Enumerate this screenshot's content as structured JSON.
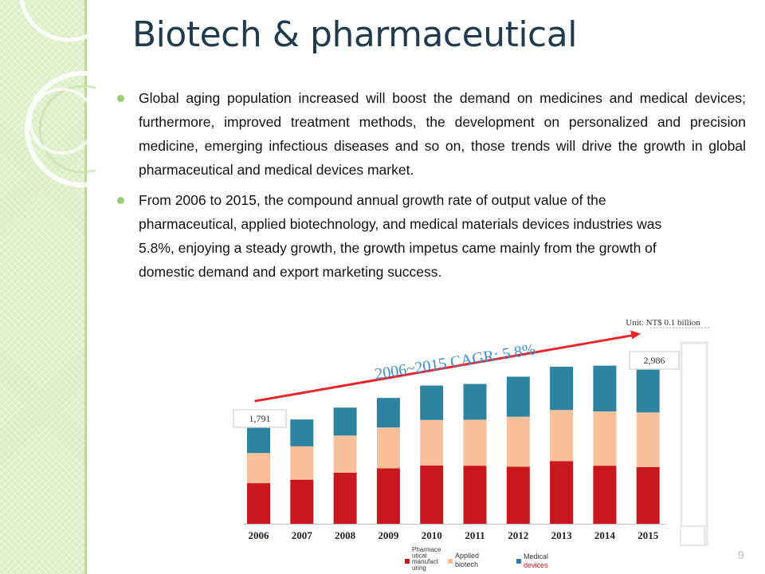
{
  "slide": {
    "title": "Biotech & pharmaceutical",
    "page_number": "9",
    "bullets": [
      "Global aging population increased will boost the demand on medicines and medical devices; furthermore, improved treatment methods, the development on personalized and precision medicine, emerging infectious diseases and so on, those trends will drive the growth in global pharmaceutical and medical devices market.",
      "From 2006 to 2015, the compound annual growth rate of output value of the pharmaceutical, applied biotechnology, and medical materials devices industries was 5.8%, enjoying a steady growth, the growth impetus came mainly from the growth of domestic demand and export marketing success."
    ],
    "colors": {
      "accent": "#9ccc6f",
      "title": "#1f3b4d",
      "strip": "#dceec6"
    }
  },
  "chart_data": {
    "type": "bar",
    "stacked": true,
    "unit_label": "Unit: NT$ 0.1 billion",
    "annotation": "2006~2015 CAGR: 5.8%",
    "first_label": "1,791",
    "last_label": "2,986",
    "categories": [
      "2006",
      "2007",
      "2008",
      "2009",
      "2010",
      "2011",
      "2012",
      "2013",
      "2014",
      "2015"
    ],
    "ylim": [
      0,
      3350
    ],
    "series": [
      {
        "name": "Pharmaceutical manufacturing",
        "color": "#c8171d",
        "values": [
          755,
          820,
          950,
          1030,
          1085,
          1080,
          1060,
          1165,
          1080,
          1055
        ]
      },
      {
        "name": "Applied biotech",
        "color": "#f7c09a",
        "values": [
          560,
          620,
          690,
          760,
          845,
          855,
          930,
          950,
          1010,
          1015
        ]
      },
      {
        "name": "Medical devices",
        "color": "#2e84a0",
        "values": [
          476,
          500,
          520,
          550,
          640,
          665,
          745,
          805,
          850,
          916
        ]
      }
    ],
    "legend_labels": [
      [
        "Pharmace",
        "utical",
        "manufact",
        "uring"
      ],
      [
        "Applied",
        "biotech"
      ],
      [
        "Medical",
        "devices"
      ]
    ],
    "legend_position": "bottom",
    "grid": false
  }
}
